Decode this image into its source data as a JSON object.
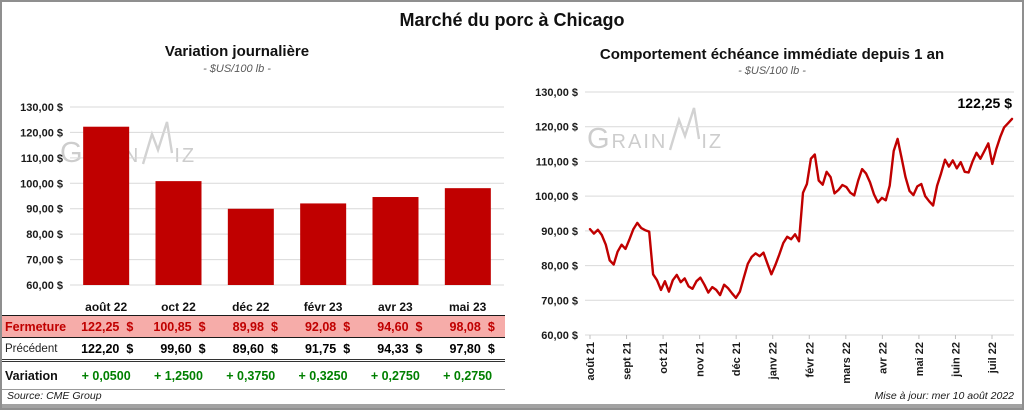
{
  "header": {
    "title": "Marché du porc à Chicago"
  },
  "watermark": {
    "part1": "Grain",
    "part2": "iz"
  },
  "footer": {
    "source": "Source: CME Group",
    "updated": "Mise à jour: mer 10 août 2022"
  },
  "table": {
    "columns": [
      "août 22",
      "oct 22",
      "déc 22",
      "févr 23",
      "avr 23",
      "mai 23"
    ],
    "rows": {
      "fermeture": {
        "label": "Fermeture",
        "unit": "$",
        "values": [
          "122,25",
          "100,85",
          "89,98",
          "92,08",
          "94,60",
          "98,08"
        ]
      },
      "precedent": {
        "label": "Précédent",
        "unit": "$",
        "values": [
          "122,20",
          "99,60",
          "89,60",
          "91,75",
          "94,33",
          "97,80"
        ]
      },
      "variation": {
        "label": "Variation",
        "values": [
          "+ 0,0500",
          "+ 1,2500",
          "+ 0,3750",
          "+ 0,3250",
          "+ 0,2750",
          "+ 0,2750"
        ]
      }
    }
  },
  "chart_data": [
    {
      "type": "bar",
      "title": "Variation journalière",
      "subtitle": "- $US/100 lb -",
      "categories": [
        "août 22",
        "oct 22",
        "déc 22",
        "févr 23",
        "avr 23",
        "mai 23"
      ],
      "values": [
        122.25,
        100.85,
        89.98,
        92.08,
        94.6,
        98.08
      ],
      "ylim": [
        60,
        130
      ],
      "ytick_step": 10,
      "ytick_labels": [
        "130,00 $",
        "120,00 $",
        "110,00 $",
        "100,00 $",
        "90,00 $",
        "80,00 $",
        "70,00 $",
        "60,00 $"
      ],
      "bar_color": "#c00000",
      "grid_color": "#d9d9d9",
      "grid": true,
      "legend": "none"
    },
    {
      "type": "line",
      "title": "Comportement échéance immédiate depuis 1 an",
      "subtitle": "- $US/100 lb -",
      "x_tick_labels": [
        "août 21",
        "sept 21",
        "oct 21",
        "nov 21",
        "déc 21",
        "janv 22",
        "févr 22",
        "mars 22",
        "avr 22",
        "mai 22",
        "juin 22",
        "juil 22"
      ],
      "ylim": [
        60,
        130
      ],
      "ytick_step": 10,
      "ytick_labels": [
        "130,00 $",
        "120,00 $",
        "110,00 $",
        "100,00 $",
        "90,00 $",
        "80,00 $",
        "70,00 $",
        "60,00 $"
      ],
      "line_color": "#c00000",
      "grid_color": "#d9d9d9",
      "grid": true,
      "legend": "none",
      "last_value": 122.25,
      "last_value_label": "122,25 $",
      "values": [
        90.5,
        89.2,
        90.3,
        88.8,
        86.0,
        81.5,
        80.3,
        84.0,
        86.0,
        84.8,
        87.5,
        90.5,
        92.3,
        90.8,
        90.2,
        89.8,
        77.5,
        75.8,
        73.0,
        75.5,
        72.5,
        75.8,
        77.3,
        75.2,
        76.3,
        74.0,
        73.3,
        75.5,
        76.5,
        74.5,
        72.2,
        73.8,
        73.0,
        71.5,
        74.5,
        73.5,
        72.0,
        70.7,
        72.5,
        76.5,
        80.5,
        82.5,
        83.5,
        82.7,
        83.7,
        80.5,
        77.5,
        80.2,
        83.2,
        86.5,
        88.3,
        87.6,
        89.0,
        87.0,
        101.0,
        103.5,
        110.8,
        112.0,
        104.5,
        103.3,
        107.0,
        105.5,
        100.8,
        101.8,
        103.2,
        102.6,
        101.0,
        100.2,
        104.5,
        107.8,
        106.5,
        104.0,
        100.5,
        98.2,
        99.5,
        98.8,
        103.0,
        113.0,
        116.5,
        111.0,
        105.5,
        101.5,
        100.3,
        102.8,
        103.5,
        100.0,
        98.5,
        97.3,
        103.0,
        106.5,
        110.5,
        108.5,
        110.3,
        108.0,
        109.8,
        107.0,
        106.8,
        110.0,
        112.5,
        110.8,
        113.0,
        115.2,
        109.3,
        113.5,
        117.0,
        119.8,
        121.0,
        122.25
      ]
    }
  ]
}
